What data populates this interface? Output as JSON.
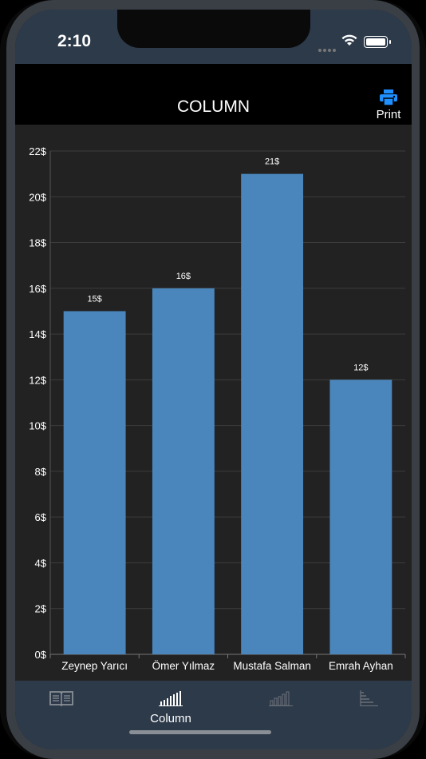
{
  "status": {
    "time": "2:10"
  },
  "nav": {
    "title": "COLUMN",
    "print_label": "Print"
  },
  "tabs": [
    {
      "icon": "book-icon",
      "label": ""
    },
    {
      "icon": "column-chart-icon",
      "label": "Column"
    },
    {
      "icon": "bar-chart-icon",
      "label": ""
    },
    {
      "icon": "horizontal-bar-icon",
      "label": ""
    }
  ],
  "colors": {
    "bar": "#4a86bb",
    "accent": "#1e90ff",
    "background": "#222222"
  },
  "chart_data": {
    "type": "bar",
    "categories": [
      "Zeynep Yarıcı",
      "Ömer Yılmaz",
      "Mustafa Salman",
      "Emrah Ayhan"
    ],
    "values": [
      15,
      16,
      21,
      12
    ],
    "data_labels": [
      "15$",
      "16$",
      "21$",
      "12$"
    ],
    "ylim": [
      0,
      22
    ],
    "yticks": [
      "0$",
      "2$",
      "4$",
      "6$",
      "8$",
      "10$",
      "12$",
      "14$",
      "16$",
      "18$",
      "20$",
      "22$"
    ],
    "grid": true,
    "title": "",
    "xlabel": "",
    "ylabel": ""
  }
}
